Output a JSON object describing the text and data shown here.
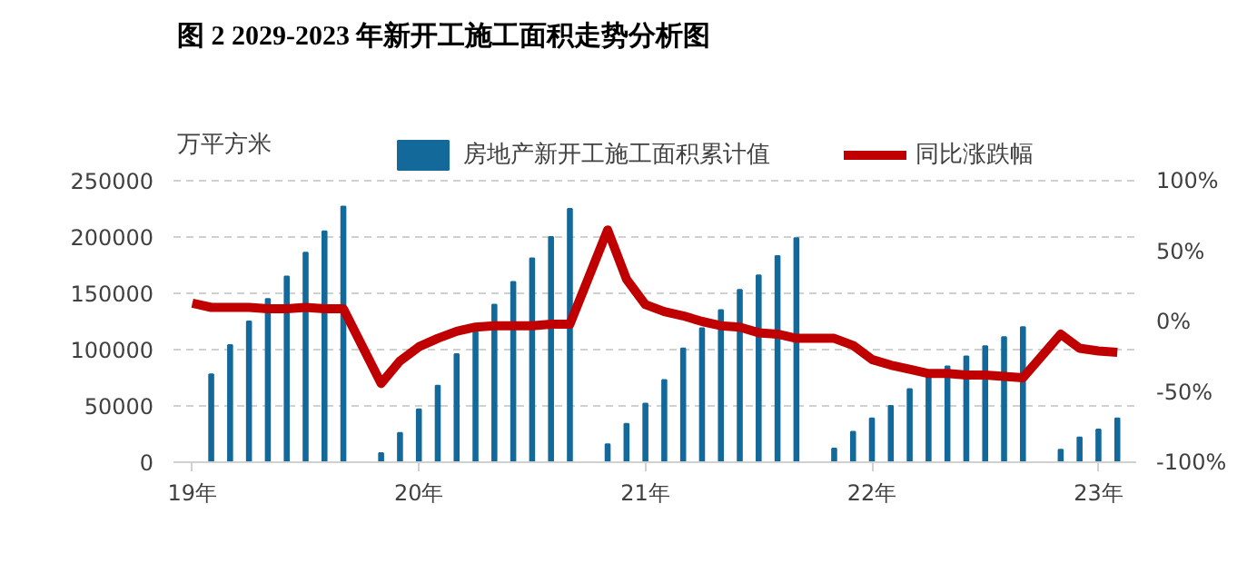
{
  "chart_data": {
    "type": "bar",
    "title": "图 2 2029-2023 年新开工施工面积走势分析图",
    "ylabel": "万平方米",
    "categories": [
      "19年",
      null,
      null,
      null,
      null,
      null,
      null,
      null,
      null,
      null,
      null,
      null,
      "20年",
      null,
      null,
      null,
      null,
      null,
      null,
      null,
      null,
      null,
      null,
      null,
      "21年",
      null,
      null,
      null,
      null,
      null,
      null,
      null,
      null,
      null,
      null,
      null,
      "22年",
      null,
      null,
      null,
      null,
      null,
      null,
      null,
      null,
      null,
      null,
      null,
      "23年",
      null
    ],
    "series": [
      {
        "name": "房地产新开工施工面积累计值",
        "color": "#13699a",
        "values": [
          null,
          78000,
          104000,
          125000,
          145000,
          165000,
          186000,
          205000,
          227000,
          null,
          8000,
          26000,
          47000,
          68000,
          96000,
          116000,
          140000,
          160000,
          181000,
          200000,
          225000,
          null,
          16000,
          34000,
          52000,
          73000,
          101000,
          119000,
          135000,
          153000,
          166000,
          183000,
          199000,
          null,
          12000,
          27000,
          39000,
          50000,
          65000,
          76000,
          85000,
          94000,
          103000,
          111000,
          120000,
          null,
          11000,
          22000,
          29000,
          39000
        ]
      },
      {
        "name": "同比涨跌幅",
        "type": "line",
        "axis": "y2",
        "color": "#c00000",
        "values": [
          13,
          10,
          10,
          10,
          9,
          9,
          10,
          9,
          9,
          null,
          -44,
          -28,
          -18,
          -12,
          -7,
          -4,
          -3,
          -3,
          -3,
          -2,
          -2,
          null,
          65,
          30,
          12,
          7,
          4,
          0,
          -3,
          -4,
          -8,
          -9,
          -12,
          null,
          -12,
          -17,
          -27,
          -31,
          -34,
          -37,
          -37,
          -38,
          -38,
          -39,
          -40,
          null,
          -9,
          -19,
          -21,
          -22
        ]
      }
    ],
    "ylim": [
      0,
      250000
    ],
    "yticks": [
      0,
      50000,
      100000,
      150000,
      200000,
      250000
    ],
    "y2lim": [
      -100,
      100
    ],
    "y2ticks": [
      {
        "value": -100,
        "label": "-100%"
      },
      {
        "value": -50,
        "label": "-50%"
      },
      {
        "value": 0,
        "label": "0%"
      },
      {
        "value": 50,
        "label": "50%"
      },
      {
        "value": 100,
        "label": "100%"
      }
    ],
    "grid": "y",
    "legend": "top"
  }
}
